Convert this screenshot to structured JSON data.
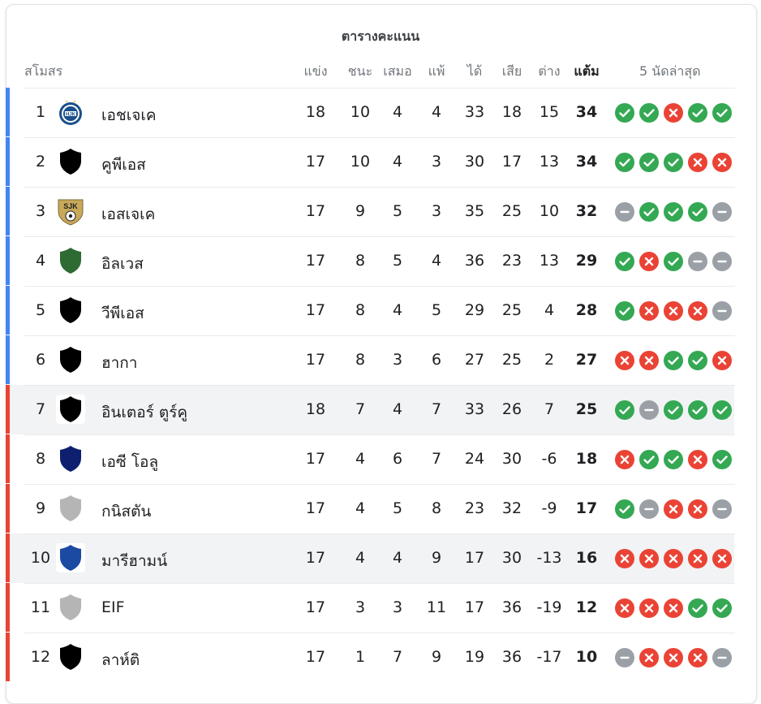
{
  "title": "ตารางคะแนน",
  "headers": {
    "club": "สโมสร",
    "played": "แข่ง",
    "won": "ชนะ",
    "drawn": "เสมอ",
    "lost": "แพ้",
    "gf": "ได้",
    "ga": "เสีย",
    "gd": "ต่าง",
    "points": "แต้ม",
    "last5": "5 นัดล่าสุด"
  },
  "colors": {
    "win": "#34a853",
    "loss": "#ea4335",
    "draw": "#9aa0a6",
    "zone_top": "#4285f4",
    "zone_bottom": "#ea4335"
  },
  "rows": [
    {
      "pos": "1",
      "name": "เอชเจเค",
      "crest": "hjk-crest-icon",
      "zone": "top",
      "played": "18",
      "won": "10",
      "drawn": "4",
      "lost": "4",
      "gf": "33",
      "ga": "18",
      "gd": "15",
      "pts": "34",
      "form": [
        "W",
        "W",
        "L",
        "W",
        "W"
      ],
      "highlight": false
    },
    {
      "pos": "2",
      "name": "คูพีเอส",
      "crest": "shield-icon",
      "zone": "top",
      "played": "17",
      "won": "10",
      "drawn": "4",
      "lost": "3",
      "gf": "30",
      "ga": "17",
      "gd": "13",
      "pts": "34",
      "form": [
        "W",
        "W",
        "W",
        "L",
        "L"
      ],
      "highlight": false
    },
    {
      "pos": "3",
      "name": "เอสเจเค",
      "crest": "sjk-crest-icon",
      "zone": "top",
      "played": "17",
      "won": "9",
      "drawn": "5",
      "lost": "3",
      "gf": "35",
      "ga": "25",
      "gd": "10",
      "pts": "32",
      "form": [
        "D",
        "W",
        "W",
        "W",
        "D"
      ],
      "highlight": false
    },
    {
      "pos": "4",
      "name": "อิลเวส",
      "crest": "shield-icon",
      "zone": "top",
      "played": "17",
      "won": "8",
      "drawn": "5",
      "lost": "4",
      "gf": "36",
      "ga": "23",
      "gd": "13",
      "pts": "29",
      "form": [
        "W",
        "L",
        "W",
        "D",
        "D"
      ],
      "highlight": false
    },
    {
      "pos": "5",
      "name": "วีพีเอส",
      "crest": "shield-icon",
      "zone": "top",
      "played": "17",
      "won": "8",
      "drawn": "4",
      "lost": "5",
      "gf": "29",
      "ga": "25",
      "gd": "4",
      "pts": "28",
      "form": [
        "W",
        "L",
        "L",
        "L",
        "D"
      ],
      "highlight": false
    },
    {
      "pos": "6",
      "name": "ฮากา",
      "crest": "shield-icon",
      "zone": "top",
      "played": "17",
      "won": "8",
      "drawn": "3",
      "lost": "6",
      "gf": "27",
      "ga": "25",
      "gd": "2",
      "pts": "27",
      "form": [
        "L",
        "L",
        "W",
        "W",
        "L"
      ],
      "highlight": false
    },
    {
      "pos": "7",
      "name": "อินเตอร์ ตูร์คู",
      "crest": "shield-icon",
      "zone": "bottom",
      "played": "18",
      "won": "7",
      "drawn": "4",
      "lost": "7",
      "gf": "33",
      "ga": "26",
      "gd": "7",
      "pts": "25",
      "form": [
        "W",
        "D",
        "W",
        "W",
        "W"
      ],
      "highlight": true
    },
    {
      "pos": "8",
      "name": "เอซี โอลู",
      "crest": "shield-icon",
      "zone": "bottom",
      "played": "17",
      "won": "4",
      "drawn": "6",
      "lost": "7",
      "gf": "24",
      "ga": "30",
      "gd": "-6",
      "pts": "18",
      "form": [
        "L",
        "W",
        "W",
        "L",
        "W"
      ],
      "highlight": false
    },
    {
      "pos": "9",
      "name": "กนิสตัน",
      "crest": "shield-icon",
      "zone": "bottom",
      "played": "17",
      "won": "4",
      "drawn": "5",
      "lost": "8",
      "gf": "23",
      "ga": "32",
      "gd": "-9",
      "pts": "17",
      "form": [
        "W",
        "D",
        "L",
        "L",
        "D"
      ],
      "highlight": false
    },
    {
      "pos": "10",
      "name": "มารีฮามน์",
      "crest": "shield-icon",
      "zone": "bottom",
      "played": "17",
      "won": "4",
      "drawn": "4",
      "lost": "9",
      "gf": "17",
      "ga": "30",
      "gd": "-13",
      "pts": "16",
      "form": [
        "L",
        "L",
        "L",
        "L",
        "L"
      ],
      "highlight": true
    },
    {
      "pos": "11",
      "name": "EIF",
      "crest": "shield-icon",
      "zone": "bottom",
      "played": "17",
      "won": "3",
      "drawn": "3",
      "lost": "11",
      "gf": "17",
      "ga": "36",
      "gd": "-19",
      "pts": "12",
      "form": [
        "L",
        "L",
        "L",
        "W",
        "W"
      ],
      "highlight": false
    },
    {
      "pos": "12",
      "name": "ลาห์ติ",
      "crest": "shield-icon",
      "zone": "bottom",
      "played": "17",
      "won": "1",
      "drawn": "7",
      "lost": "9",
      "gf": "19",
      "ga": "36",
      "gd": "-17",
      "pts": "10",
      "form": [
        "D",
        "L",
        "L",
        "L",
        "D"
      ],
      "highlight": false
    }
  ],
  "crest_colors": [
    "#1a4f8b",
    "#000000",
    "#c8a95a",
    "#2e6b33",
    "#000000",
    "#000000",
    "#000000",
    "#0d1f6e",
    "#b5b5b5",
    "#1b4aa3",
    "#b5b5b5",
    "#000000"
  ]
}
